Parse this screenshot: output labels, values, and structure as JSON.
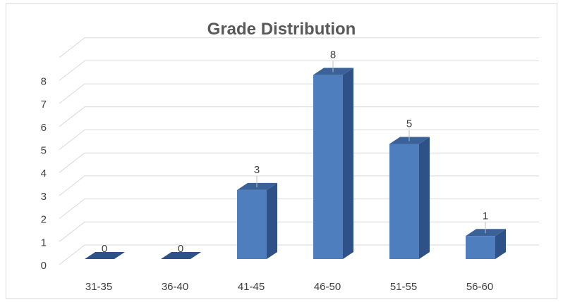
{
  "chart_data": {
    "type": "bar",
    "style": "3d-column",
    "title": "Grade Distribution",
    "xlabel": "",
    "ylabel": "",
    "categories": [
      "31-35",
      "36-40",
      "41-45",
      "46-50",
      "51-55",
      "56-60"
    ],
    "values": [
      0,
      0,
      3,
      8,
      5,
      1
    ],
    "data_labels": [
      "0",
      "0",
      "3",
      "8",
      "5",
      "1"
    ],
    "ylim": [
      0,
      9
    ],
    "yticks": [
      "0",
      "1",
      "2",
      "3",
      "4",
      "5",
      "6",
      "7",
      "8"
    ],
    "grid": true,
    "legend": "none",
    "colors": {
      "bar_front": "#4f7ebf",
      "bar_side": "#2e5288",
      "bar_top": "#3a6299",
      "gridline": "#d9d9d9",
      "title": "#595959"
    }
  }
}
